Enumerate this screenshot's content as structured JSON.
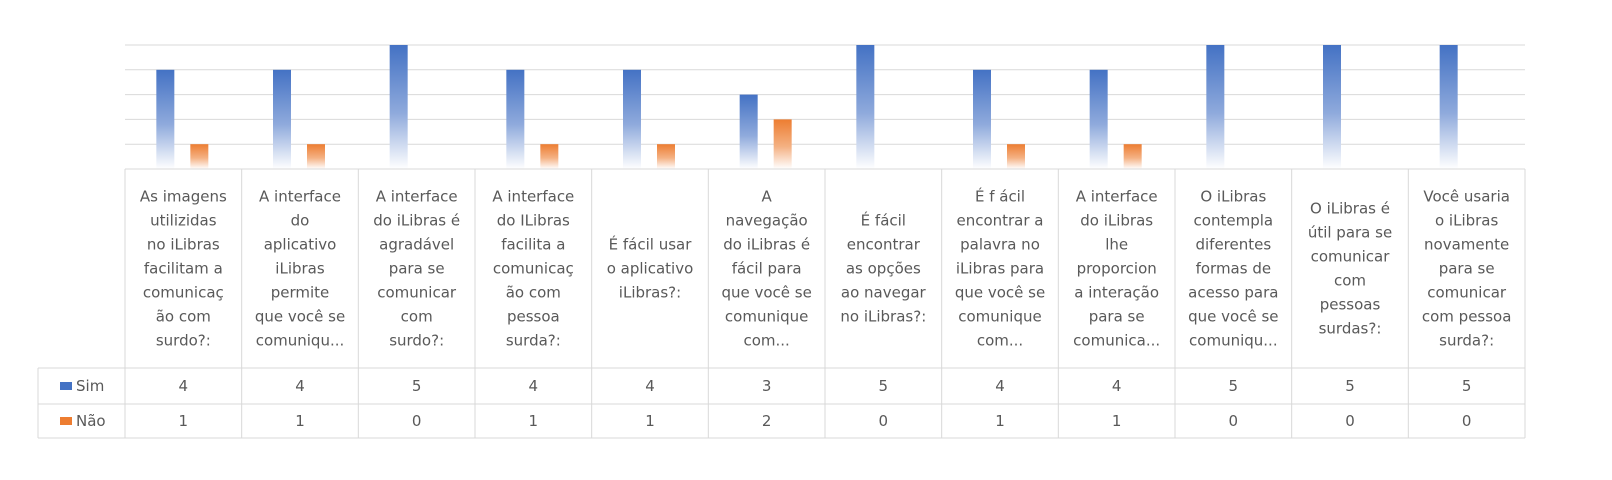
{
  "chart_data": {
    "type": "bar",
    "categories": [
      "As imagens utilizidas no iLibras facilitam a comunicação com surdo?:",
      "A interface do aplicativo iLibras permite que você se comuniqu...",
      "A interface do iLibras é agradável para se comunicar com surdo?:",
      "A interface do ILibras facilita a comunicação com pessoa surda?:",
      "É fácil usar o aplicativo iLibras?:",
      "A navegação do iLibras é fácil para que você se comunique com...",
      "É fácil encontrar as opções ao navegar no iLibras?:",
      "É f ácil encontrar a palavra no iLibras para que você se comunique com...",
      "A interface do iLibras lhe proporciona a interação para se comunica...",
      "O iLibras contempla diferentes formas de acesso para que você se comuniqu...",
      "O iLibras é útil para se comunicar com pessoas surdas?:",
      "Você usaria o iLibras novamente para se comunicar com pessoa surda?:"
    ],
    "category_lines": [
      [
        "As imagens",
        "utilizidas",
        "no iLibras",
        "facilitam a",
        "comunicaç",
        "ão com",
        "surdo?:"
      ],
      [
        "A interface",
        "do",
        "aplicativo",
        "iLibras",
        "permite",
        "que você se",
        "comuniqu..."
      ],
      [
        "A interface",
        "do iLibras é",
        "agradável",
        "para se",
        "comunicar",
        "com",
        "surdo?:"
      ],
      [
        "A interface",
        "do ILibras",
        "facilita a",
        "comunicaç",
        "ão com",
        "pessoa",
        "surda?:"
      ],
      [
        "É fácil usar",
        "o aplicativo",
        "iLibras?:"
      ],
      [
        "A",
        "navegação",
        "do iLibras é",
        "fácil para",
        "que você se",
        "comunique",
        "com..."
      ],
      [
        "É fácil",
        "encontrar",
        "as opções",
        "ao navegar",
        "no iLibras?:"
      ],
      [
        "É f ácil",
        "encontrar a",
        "palavra no",
        "iLibras para",
        "que você se",
        "comunique",
        "com..."
      ],
      [
        "A interface",
        "do iLibras",
        "lhe",
        "proporcion",
        "a interação",
        "para se",
        "comunica..."
      ],
      [
        "O iLibras",
        "contempla",
        "diferentes",
        "formas de",
        "acesso para",
        "que você se",
        "comuniqu..."
      ],
      [
        "O iLibras é",
        "útil para se",
        "comunicar",
        "com",
        "pessoas",
        "surdas?:"
      ],
      [
        "Você usaria",
        "o iLibras",
        "novamente",
        "para se",
        "comunicar",
        "com pessoa",
        "surda?:"
      ]
    ],
    "series": [
      {
        "name": "Sim",
        "color": "#4472c4",
        "values": [
          4,
          4,
          5,
          4,
          4,
          3,
          5,
          4,
          4,
          5,
          5,
          5
        ]
      },
      {
        "name": "Não",
        "color": "#ed7d31",
        "values": [
          1,
          1,
          0,
          1,
          1,
          2,
          0,
          1,
          1,
          0,
          0,
          0
        ]
      }
    ],
    "ylim": [
      0,
      5
    ],
    "grid": true,
    "data_table": true,
    "legend_placement": "data-table-left"
  }
}
